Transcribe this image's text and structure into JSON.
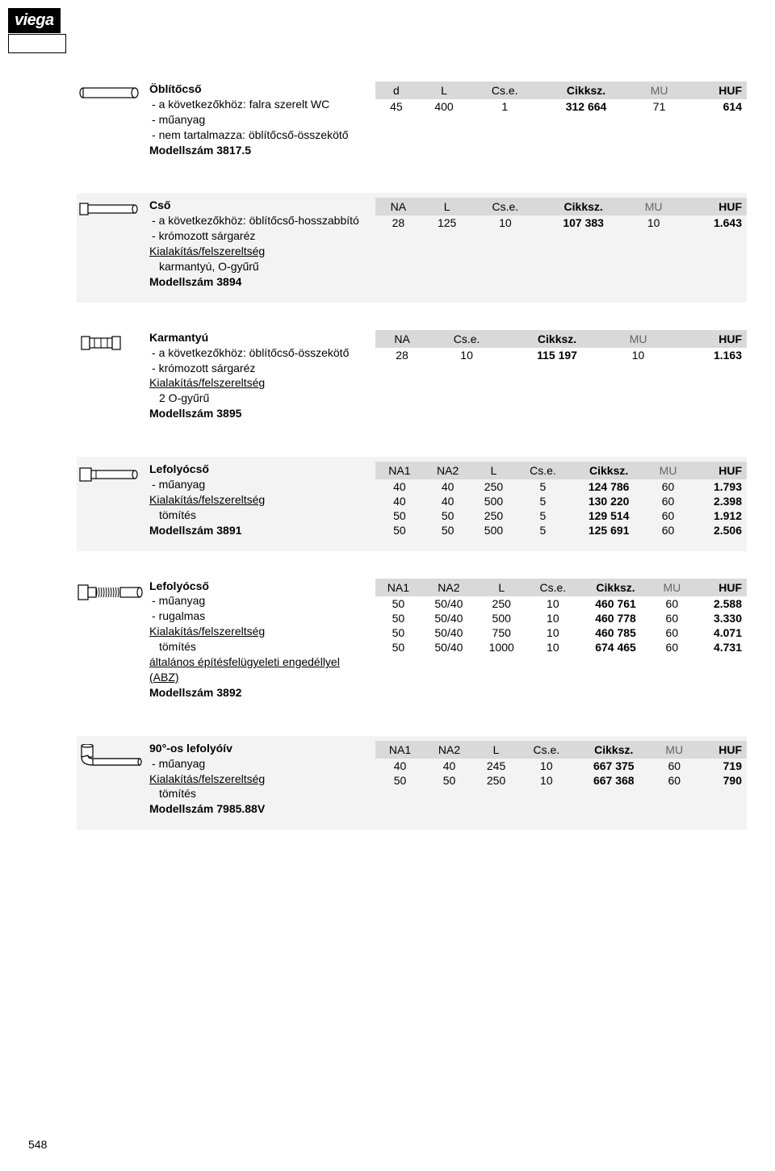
{
  "logo": "viega",
  "page_number": "548",
  "blocks": [
    {
      "alt": false,
      "title": "Öblítőcső",
      "lines": [
        {
          "type": "sub",
          "text": "a következőkhöz: falra szerelt WC"
        },
        {
          "type": "sub",
          "text": "műanyag"
        },
        {
          "type": "sub",
          "text": "nem tartalmazza: öblítőcső-összekötő"
        }
      ],
      "model": "Modellszám 3817.5",
      "columns": [
        "d",
        "L",
        "Cs.e.",
        "Cikksz.",
        "MU",
        "HUF"
      ],
      "rows": [
        [
          "45",
          "400",
          "1",
          "312 664",
          "71",
          "614"
        ]
      ]
    },
    {
      "alt": true,
      "title": "Cső",
      "lines": [
        {
          "type": "sub",
          "text": "a következőkhöz: öblítőcső-hosszabbító"
        },
        {
          "type": "sub",
          "text": "krómozott sárgaréz"
        },
        {
          "type": "under",
          "text": "Kialakítás/felszereltség"
        },
        {
          "type": "indent",
          "text": "karmantyú, O-gyűrű"
        }
      ],
      "model": "Modellszám 3894",
      "columns": [
        "NA",
        "L",
        "Cs.e.",
        "Cikksz.",
        "MU",
        "HUF"
      ],
      "rows": [
        [
          "28",
          "125",
          "10",
          "107 383",
          "10",
          "1.643"
        ]
      ]
    },
    {
      "alt": false,
      "title": "Karmantyú",
      "lines": [
        {
          "type": "sub",
          "text": "a következőkhöz: öblítőcső-összekötő"
        },
        {
          "type": "sub",
          "text": "krómozott sárgaréz"
        },
        {
          "type": "under",
          "text": "Kialakítás/felszereltség"
        },
        {
          "type": "indent",
          "text": "2 O-gyűrű"
        }
      ],
      "model": "Modellszám 3895",
      "columns": [
        "NA",
        "Cs.e.",
        "Cikksz.",
        "MU",
        "HUF"
      ],
      "rows": [
        [
          "28",
          "10",
          "115 197",
          "10",
          "1.163"
        ]
      ]
    },
    {
      "alt": true,
      "title": "Lefolyócső",
      "lines": [
        {
          "type": "sub",
          "text": "műanyag"
        },
        {
          "type": "under",
          "text": "Kialakítás/felszereltség"
        },
        {
          "type": "indent",
          "text": "tömítés"
        }
      ],
      "model": "Modellszám 3891",
      "columns": [
        "NA1",
        "NA2",
        "L",
        "Cs.e.",
        "Cikksz.",
        "MU",
        "HUF"
      ],
      "rows": [
        [
          "40",
          "40",
          "250",
          "5",
          "124 786",
          "60",
          "1.793"
        ],
        [
          "40",
          "40",
          "500",
          "5",
          "130 220",
          "60",
          "2.398"
        ],
        [
          "50",
          "50",
          "250",
          "5",
          "129 514",
          "60",
          "1.912"
        ],
        [
          "50",
          "50",
          "500",
          "5",
          "125 691",
          "60",
          "2.506"
        ]
      ]
    },
    {
      "alt": false,
      "title": "Lefolyócső",
      "lines": [
        {
          "type": "sub",
          "text": "műanyag"
        },
        {
          "type": "sub",
          "text": "rugalmas"
        },
        {
          "type": "under",
          "text": "Kialakítás/felszereltség"
        },
        {
          "type": "indent",
          "text": "tömítés"
        },
        {
          "type": "under",
          "text": "általános építésfelügyeleti engedéllyel (ABZ)"
        }
      ],
      "model": "Modellszám 3892",
      "columns": [
        "NA1",
        "NA2",
        "L",
        "Cs.e.",
        "Cikksz.",
        "MU",
        "HUF"
      ],
      "rows": [
        [
          "50",
          "50/40",
          "250",
          "10",
          "460 761",
          "60",
          "2.588"
        ],
        [
          "50",
          "50/40",
          "500",
          "10",
          "460 778",
          "60",
          "3.330"
        ],
        [
          "50",
          "50/40",
          "750",
          "10",
          "460 785",
          "60",
          "4.071"
        ],
        [
          "50",
          "50/40",
          "1000",
          "10",
          "674 465",
          "60",
          "4.731"
        ]
      ]
    },
    {
      "alt": true,
      "title": "90°-os lefolyóív",
      "lines": [
        {
          "type": "sub",
          "text": "műanyag"
        },
        {
          "type": "under",
          "text": "Kialakítás/felszereltség"
        },
        {
          "type": "indent",
          "text": "tömítés"
        }
      ],
      "model": "Modellszám 7985.88V",
      "columns": [
        "NA1",
        "NA2",
        "L",
        "Cs.e.",
        "Cikksz.",
        "MU",
        "HUF"
      ],
      "rows": [
        [
          "40",
          "40",
          "245",
          "10",
          "667 375",
          "60",
          "719"
        ],
        [
          "50",
          "50",
          "250",
          "10",
          "667 368",
          "60",
          "790"
        ]
      ]
    }
  ],
  "svgs": {
    "0": "tube-simple",
    "1": "tube-collar",
    "2": "coupling",
    "3": "drain-tube",
    "4": "flex-tube",
    "5": "elbow-90"
  },
  "colors": {
    "header_bg": "#d9d9d9",
    "alt_bg": "#f3f3f3",
    "text": "#000000",
    "mu_header": "#666666"
  }
}
